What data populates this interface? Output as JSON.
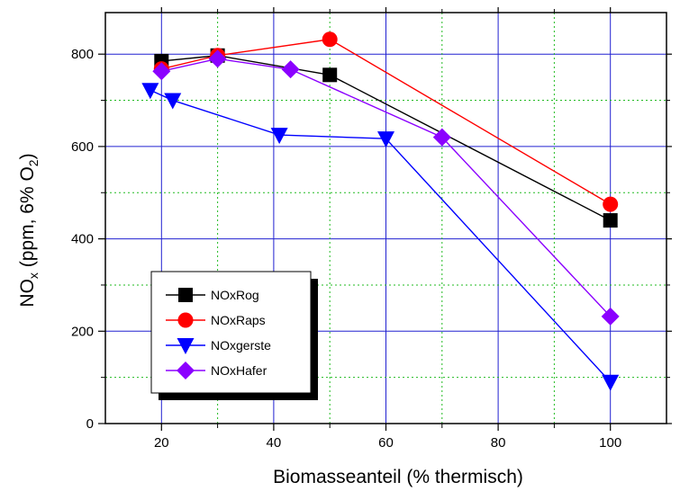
{
  "chart_data": {
    "type": "line",
    "title": "",
    "xlabel": "Biomasseanteil (% thermisch)",
    "ylabel_parts": {
      "main": "NO",
      "sub_x": "x",
      "mid": " (ppm, 6% O",
      "sub_2": "2",
      "end": ")"
    },
    "xlim": [
      10,
      110
    ],
    "ylim": [
      0,
      890
    ],
    "xticks": [
      20,
      40,
      60,
      80,
      100
    ],
    "yticks": [
      0,
      200,
      400,
      600,
      800
    ],
    "xtick_labels": [
      "20",
      "40",
      "60",
      "80",
      "100"
    ],
    "ytick_labels": [
      "0",
      "200",
      "400",
      "600",
      "800"
    ],
    "grid": true,
    "legend_position": "bottom-left",
    "series": [
      {
        "name": "NOxRog",
        "color": "#000000",
        "marker": "square",
        "x": [
          20,
          30,
          50,
          100
        ],
        "y": [
          785,
          797,
          755,
          440
        ]
      },
      {
        "name": "NOxRaps",
        "color": "#ff0000",
        "marker": "circle",
        "x": [
          20,
          30,
          50,
          100
        ],
        "y": [
          768,
          797,
          832,
          475
        ]
      },
      {
        "name": "NOxgerste",
        "color": "#0000ff",
        "marker": "triangle-down",
        "x": [
          18,
          22,
          41,
          60,
          100
        ],
        "y": [
          722,
          700,
          625,
          617,
          90
        ]
      },
      {
        "name": "NOxHafer",
        "color": "#8b00ff",
        "marker": "diamond",
        "x": [
          20,
          30,
          43,
          70,
          100
        ],
        "y": [
          763,
          790,
          767,
          620,
          232
        ]
      }
    ]
  }
}
